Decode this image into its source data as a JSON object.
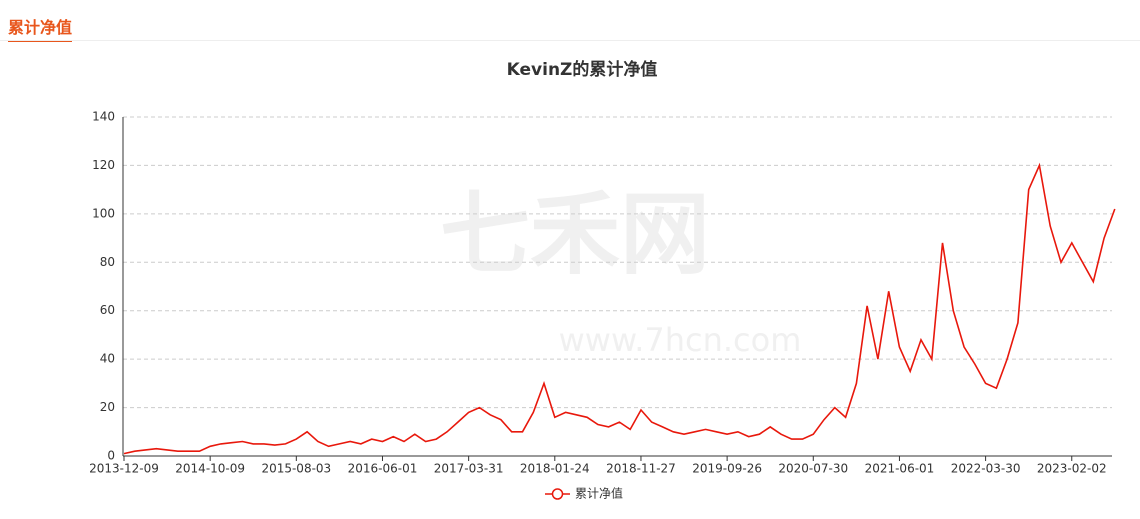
{
  "tab": "累计净值",
  "watermark": {
    "name": "七禾网",
    "url": "www.7hcn.com"
  },
  "chart_data": {
    "type": "line",
    "title": "KevinZ的累计净值",
    "categories": [
      "2013-12-09",
      null,
      null,
      null,
      null,
      null,
      null,
      null,
      "2014-10-09",
      null,
      null,
      null,
      null,
      null,
      null,
      null,
      "2015-08-03",
      null,
      null,
      null,
      null,
      null,
      null,
      null,
      "2016-06-01",
      null,
      null,
      null,
      null,
      null,
      null,
      null,
      "2017-03-31",
      null,
      null,
      null,
      null,
      null,
      null,
      null,
      "2018-01-24",
      null,
      null,
      null,
      null,
      null,
      null,
      null,
      "2018-11-27",
      null,
      null,
      null,
      null,
      null,
      null,
      null,
      "2019-09-26",
      null,
      null,
      null,
      null,
      null,
      null,
      null,
      "2020-07-30",
      null,
      null,
      null,
      null,
      null,
      null,
      null,
      "2021-06-01",
      null,
      null,
      null,
      null,
      null,
      null,
      null,
      "2022-03-30",
      null,
      null,
      null,
      null,
      null,
      null,
      null,
      "2023-02-02",
      null,
      null,
      null,
      null
    ],
    "series": [
      {
        "name": "累计净值",
        "color": "#e8180c",
        "values": [
          1,
          2,
          2.5,
          3,
          2.5,
          2,
          2,
          2,
          4,
          5,
          5.5,
          6,
          5,
          5,
          4.5,
          5,
          7,
          10,
          6,
          4,
          5,
          6,
          5,
          7,
          6,
          8,
          6,
          9,
          6,
          7,
          10,
          14,
          18,
          20,
          17,
          15,
          10,
          10,
          18,
          30,
          16,
          18,
          17,
          16,
          13,
          12,
          14,
          11,
          19,
          14,
          12,
          10,
          9,
          10,
          11,
          10,
          9,
          10,
          8,
          9,
          12,
          9,
          7,
          7,
          9,
          15,
          20,
          16,
          30,
          62,
          40,
          68,
          45,
          35,
          48,
          40,
          88,
          60,
          45,
          38,
          30,
          28,
          40,
          55,
          110,
          120,
          95,
          80,
          88,
          80,
          72,
          90,
          102
        ]
      }
    ],
    "ylim": [
      0,
      140
    ],
    "yticks": [
      0,
      20,
      40,
      60,
      80,
      100,
      120,
      140
    ],
    "grid": true
  }
}
